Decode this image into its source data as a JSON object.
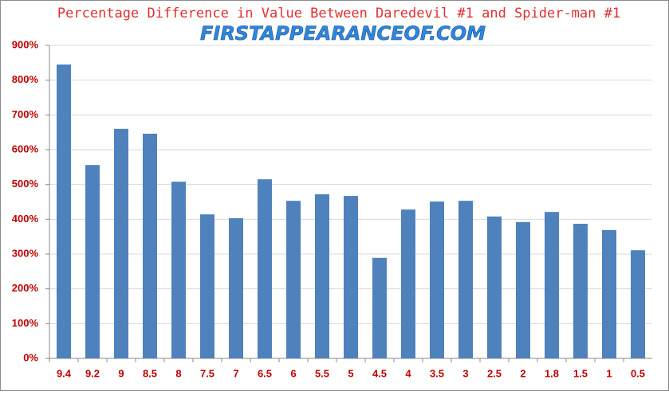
{
  "chart_data": {
    "type": "bar",
    "title": "Percentage Difference in Value Between Daredevil #1 and Spider-man #1",
    "watermark": "FIRSTAPPEARANCEOF.COM",
    "categories": [
      "9.4",
      "9.2",
      "9",
      "8.5",
      "8",
      "7.5",
      "7",
      "6.5",
      "6",
      "5.5",
      "5",
      "4.5",
      "4",
      "3.5",
      "3",
      "2.5",
      "2",
      "1.8",
      "1.5",
      "1",
      "0.5"
    ],
    "values": [
      845,
      556,
      660,
      646,
      508,
      414,
      403,
      515,
      453,
      472,
      467,
      289,
      428,
      451,
      453,
      408,
      392,
      421,
      387,
      369,
      311
    ],
    "color": "#4f81bd",
    "ylim": [
      0,
      900
    ],
    "yticks": [
      {
        "value": 0,
        "label": "0%"
      },
      {
        "value": 100,
        "label": "100%"
      },
      {
        "value": 200,
        "label": "200%"
      },
      {
        "value": 300,
        "label": "300%"
      },
      {
        "value": 400,
        "label": "400%"
      },
      {
        "value": 500,
        "label": "500%"
      },
      {
        "value": 600,
        "label": "600%"
      },
      {
        "value": 700,
        "label": "700%"
      },
      {
        "value": 800,
        "label": "800%"
      },
      {
        "value": 900,
        "label": "900%"
      }
    ],
    "grid": true
  }
}
